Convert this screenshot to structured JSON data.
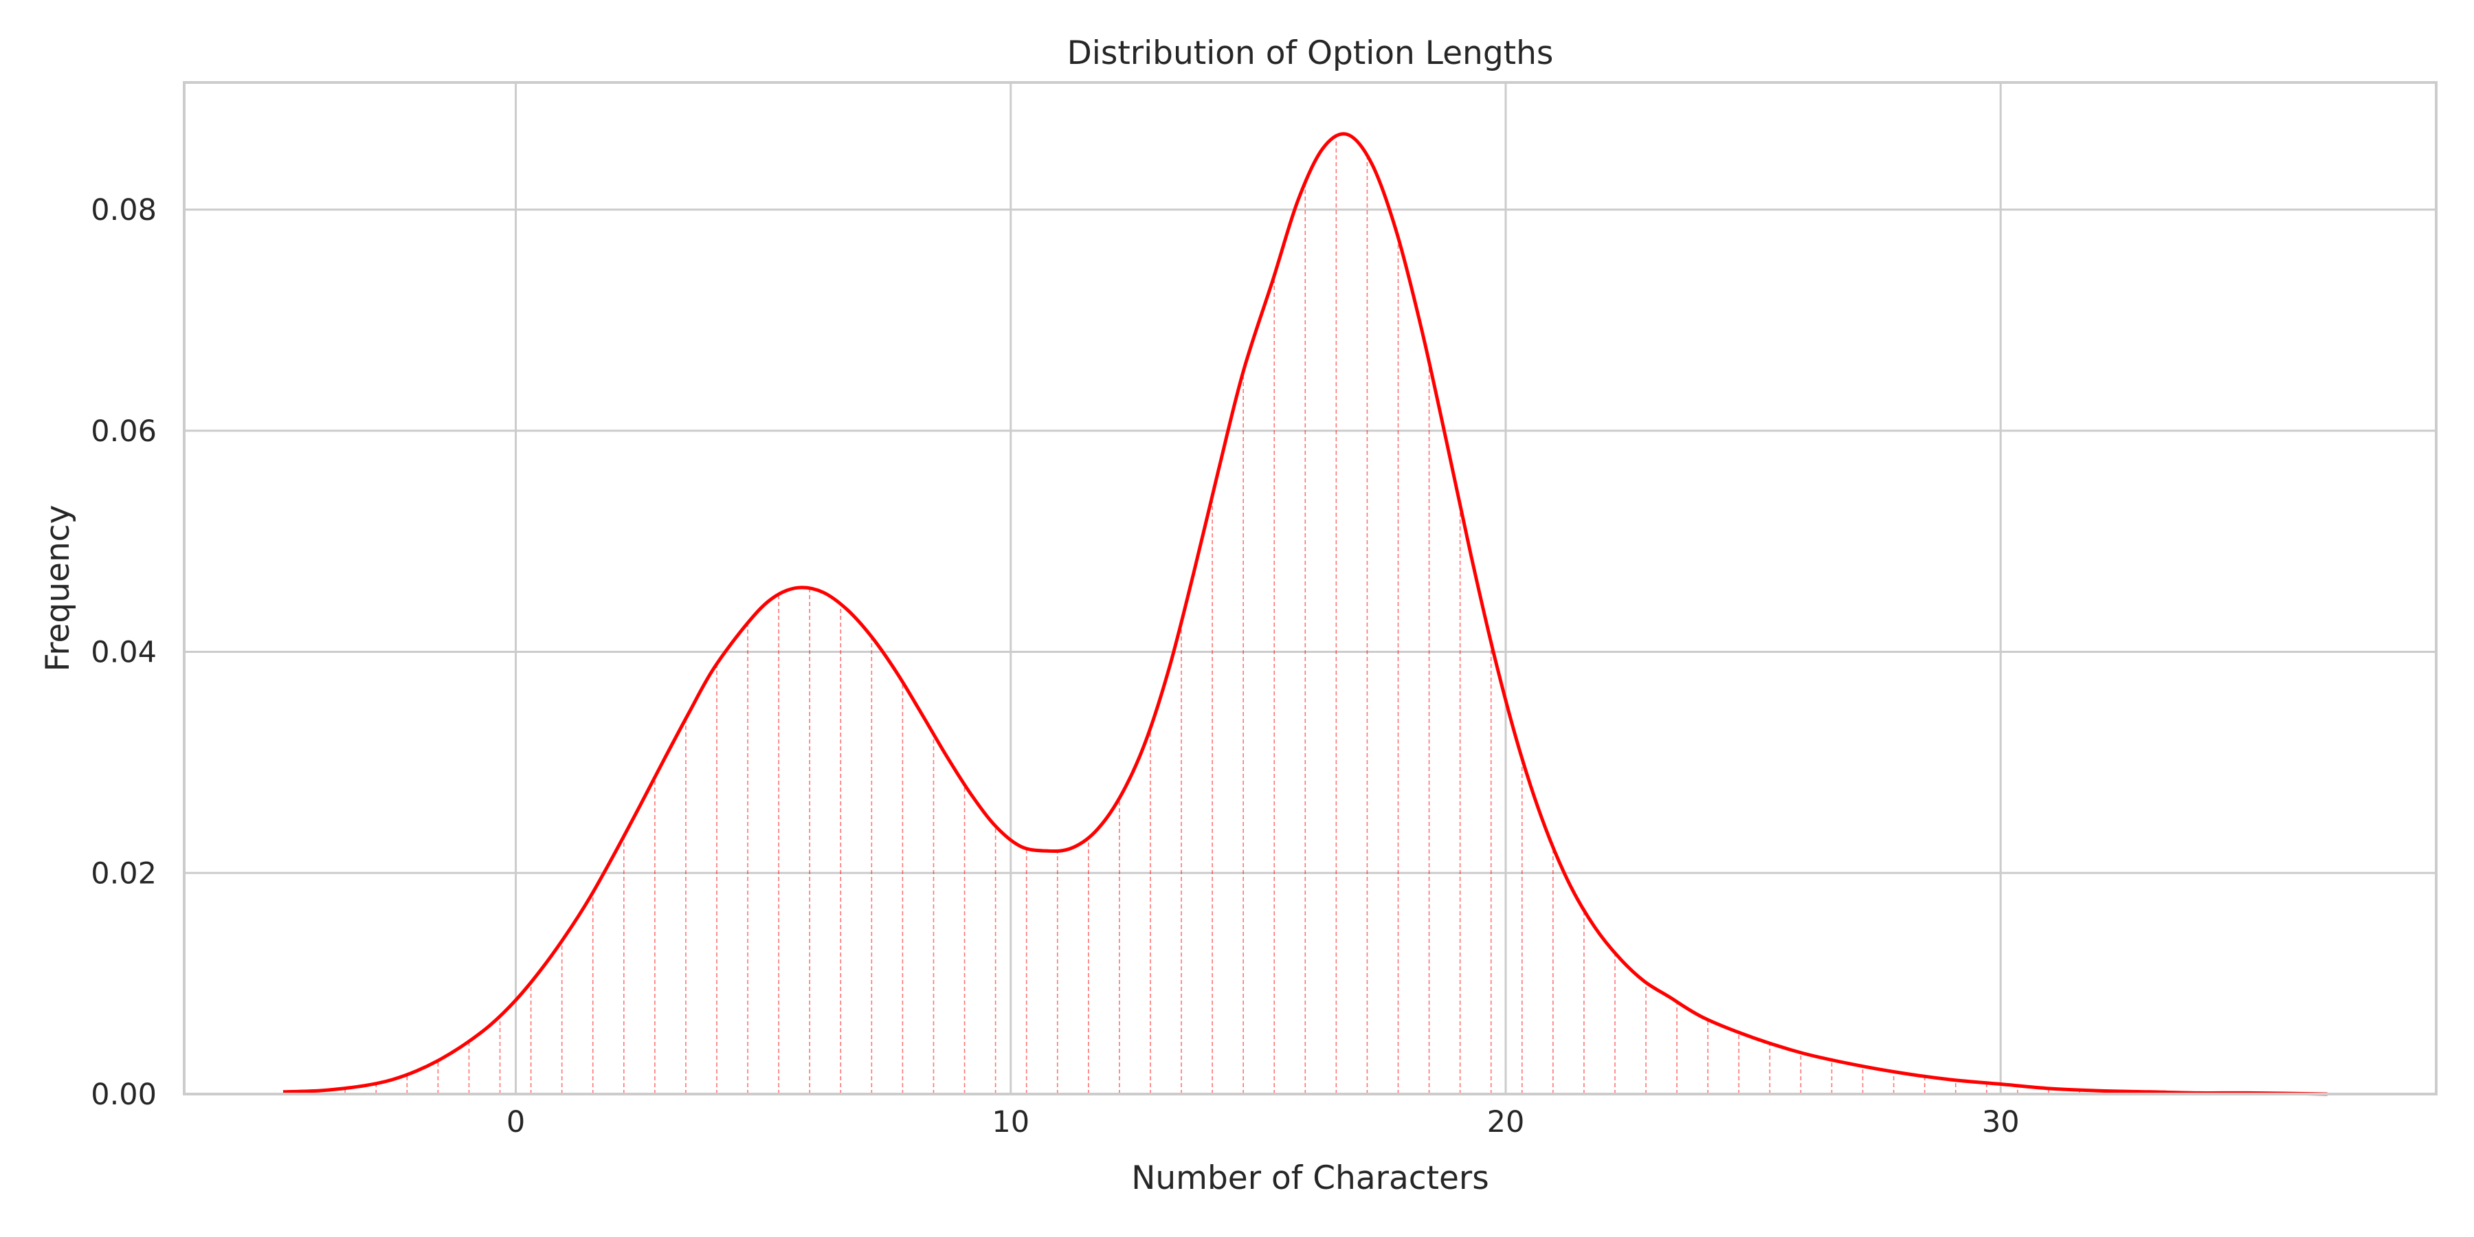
{
  "chart_data": {
    "type": "area",
    "title": "Distribution of Option Lengths",
    "xlabel": "Number of Characters",
    "ylabel": "Frequency",
    "xlim": [
      -6.7,
      38.8
    ],
    "ylim": [
      0.0,
      0.0915
    ],
    "x_ticks": [
      0,
      10,
      20,
      30
    ],
    "x_tick_labels": [
      "0",
      "10",
      "20",
      "30"
    ],
    "y_ticks": [
      0.0,
      0.02,
      0.04,
      0.06,
      0.08
    ],
    "y_tick_labels": [
      "0.00",
      "0.02",
      "0.04",
      "0.06",
      "0.08"
    ],
    "grid": true,
    "line_color": "#ff0000",
    "fill": "vertical-dashed-lines",
    "series": [
      {
        "x": [
          -4.7,
          -4.0,
          -3.5,
          -3.0,
          -2.5,
          -2.0,
          -1.5,
          -1.0,
          -0.5,
          0.0,
          0.5,
          1.0,
          1.5,
          2.0,
          2.5,
          3.0,
          3.5,
          4.0,
          4.7,
          5.2,
          5.7,
          6.2,
          6.7,
          7.2,
          7.7,
          8.2,
          8.7,
          9.2,
          9.7,
          10.2,
          10.7,
          11.2,
          11.7,
          12.2,
          12.7,
          13.2,
          13.7,
          14.2,
          14.7,
          15.3,
          15.8,
          16.3,
          16.8,
          17.3,
          17.8,
          18.3,
          18.8,
          19.3,
          19.8,
          20.3,
          20.8,
          21.3,
          21.8,
          22.3,
          22.8,
          23.3,
          24.0,
          25.0,
          26.0,
          27.0,
          28.0,
          29.0,
          30.0,
          31.0,
          32.0,
          33.0,
          34.0,
          35.0,
          36.6
        ],
        "y": [
          0.0002,
          0.0003,
          0.0005,
          0.0008,
          0.0013,
          0.0021,
          0.0032,
          0.0046,
          0.0063,
          0.0085,
          0.0112,
          0.0143,
          0.0178,
          0.0218,
          0.026,
          0.0303,
          0.0345,
          0.0385,
          0.0427,
          0.0449,
          0.0458,
          0.0454,
          0.0438,
          0.0413,
          0.0381,
          0.0344,
          0.0306,
          0.0271,
          0.0242,
          0.0224,
          0.022,
          0.0222,
          0.0237,
          0.0268,
          0.0316,
          0.0385,
          0.0472,
          0.0565,
          0.0654,
          0.0737,
          0.0808,
          0.0855,
          0.0868,
          0.0841,
          0.0779,
          0.0692,
          0.0591,
          0.0487,
          0.0391,
          0.0308,
          0.0241,
          0.0189,
          0.0151,
          0.0123,
          0.0102,
          0.0088,
          0.0069,
          0.0051,
          0.0037,
          0.0027,
          0.0019,
          0.0013,
          0.0009,
          0.0005,
          0.0003,
          0.0002,
          0.0001,
          0.0001,
          0.0
        ]
      }
    ]
  }
}
